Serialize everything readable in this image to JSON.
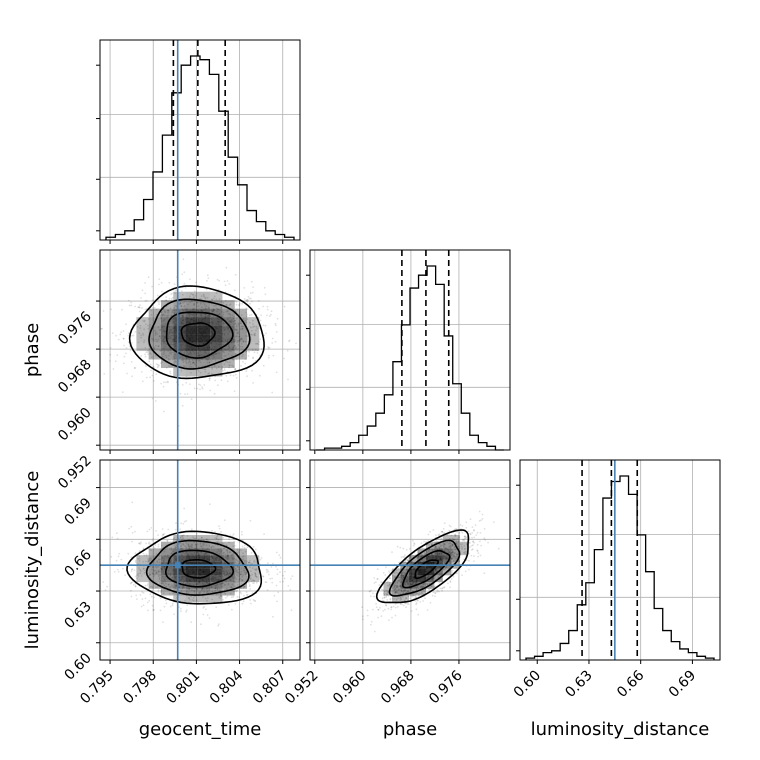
{
  "chart_data": {
    "type": "corner",
    "parameters": [
      {
        "name": "geocent_time",
        "range": [
          0.7943,
          0.8082
        ],
        "ticks": [
          0.795,
          0.798,
          0.801,
          0.804,
          0.807
        ],
        "tick_labels": [
          "0.795",
          "0.798",
          "0.801",
          "0.804",
          "0.807"
        ],
        "injection": 0.7997,
        "quantiles": [
          0.7994,
          0.8011,
          0.803
        ],
        "histogram": [
          0.015,
          0.03,
          0.05,
          0.11,
          0.22,
          0.37,
          0.57,
          0.8,
          0.95,
          1.0,
          0.98,
          0.9,
          0.7,
          0.45,
          0.3,
          0.16,
          0.1,
          0.05,
          0.03,
          0.015
        ]
      },
      {
        "name": "phase",
        "range": [
          0.9512,
          0.9845
        ],
        "ticks": [
          0.952,
          0.96,
          0.968,
          0.976
        ],
        "tick_labels": [
          "0.952",
          "0.960",
          "0.968",
          "0.976"
        ],
        "injection": null,
        "quantiles": [
          0.9665,
          0.9705,
          0.9743
        ],
        "histogram": [
          0.0,
          0.01,
          0.01,
          0.02,
          0.04,
          0.08,
          0.13,
          0.2,
          0.3,
          0.48,
          0.68,
          0.88,
          0.95,
          1.0,
          0.9,
          0.62,
          0.36,
          0.2,
          0.08,
          0.04,
          0.02,
          0.0
        ]
      },
      {
        "name": "luminosity_distance",
        "range": [
          0.59,
          0.706
        ],
        "ticks": [
          0.6,
          0.63,
          0.66,
          0.69
        ],
        "tick_labels": [
          "0.60",
          "0.63",
          "0.66",
          "0.69"
        ],
        "injection": 0.645,
        "quantiles": [
          0.626,
          0.643,
          0.658
        ],
        "histogram": [
          0.01,
          0.02,
          0.04,
          0.05,
          0.09,
          0.16,
          0.3,
          0.42,
          0.6,
          0.88,
          0.97,
          1.0,
          0.9,
          0.68,
          0.48,
          0.28,
          0.16,
          0.1,
          0.06,
          0.04,
          0.02,
          0.01
        ]
      }
    ],
    "pairs": [
      {
        "x": "geocent_time",
        "y": "phase",
        "mean": [
          0.8011,
          0.9705
        ],
        "sd": [
          0.0023,
          0.0038
        ],
        "corr": 0.0
      },
      {
        "x": "geocent_time",
        "y": "luminosity_distance",
        "mean": [
          0.8011,
          0.643
        ],
        "sd": [
          0.0023,
          0.0105
        ],
        "corr": -0.05
      },
      {
        "x": "phase",
        "y": "luminosity_distance",
        "mean": [
          0.9705,
          0.643
        ],
        "sd": [
          0.0038,
          0.0105
        ],
        "corr": 0.72
      }
    ],
    "contour_levels_sigma": [
      0.5,
      1.0,
      1.5,
      2.0
    ],
    "grid": true,
    "injection_color": "#4682b4",
    "line_color": "#000000"
  }
}
